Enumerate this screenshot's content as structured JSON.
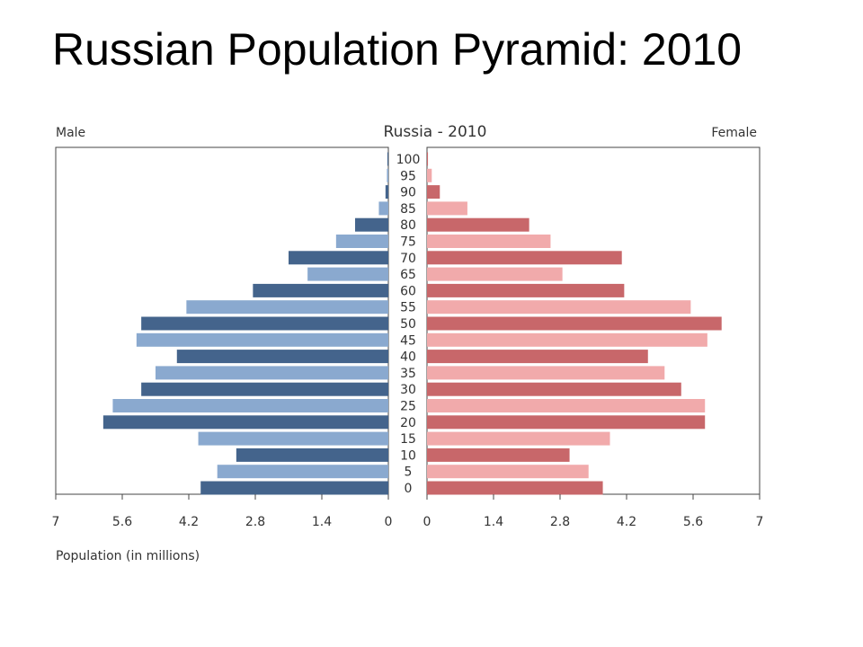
{
  "slide": {
    "title": "Russian Population Pyramid: 2010"
  },
  "chart_data": {
    "type": "bar",
    "orientation": "horizontal-pyramid",
    "title": "Russia - 2010",
    "left_label": "Male",
    "right_label": "Female",
    "xlabel": "Population (in millions)",
    "xlim": [
      0,
      7
    ],
    "x_ticks_left": [
      "7",
      "5.6",
      "4.2",
      "2.8",
      "1.4",
      "0"
    ],
    "x_ticks_right": [
      "0",
      "1.4",
      "2.8",
      "4.2",
      "5.6",
      "7"
    ],
    "categories": [
      "100",
      "95",
      "90",
      "85",
      "80",
      "75",
      "70",
      "65",
      "60",
      "55",
      "50",
      "45",
      "40",
      "35",
      "30",
      "25",
      "20",
      "15",
      "10",
      "5",
      "0"
    ],
    "series": [
      {
        "name": "Male",
        "values": [
          0.02,
          0.03,
          0.06,
          0.2,
          0.7,
          1.1,
          2.1,
          1.7,
          2.85,
          4.25,
          5.2,
          5.3,
          4.45,
          4.9,
          5.2,
          5.8,
          6.0,
          4.0,
          3.2,
          3.6,
          3.95
        ],
        "colors": [
          "#44648c",
          "#8aa9cf"
        ]
      },
      {
        "name": "Female",
        "values": [
          0.02,
          0.1,
          0.27,
          0.85,
          2.15,
          2.6,
          4.1,
          2.85,
          4.15,
          5.55,
          6.2,
          5.9,
          4.65,
          5.0,
          5.35,
          5.85,
          5.85,
          3.85,
          3.0,
          3.4,
          3.7
        ],
        "colors": [
          "#c8676a",
          "#f1aaab"
        ]
      }
    ],
    "legend": "none",
    "grid": false
  }
}
